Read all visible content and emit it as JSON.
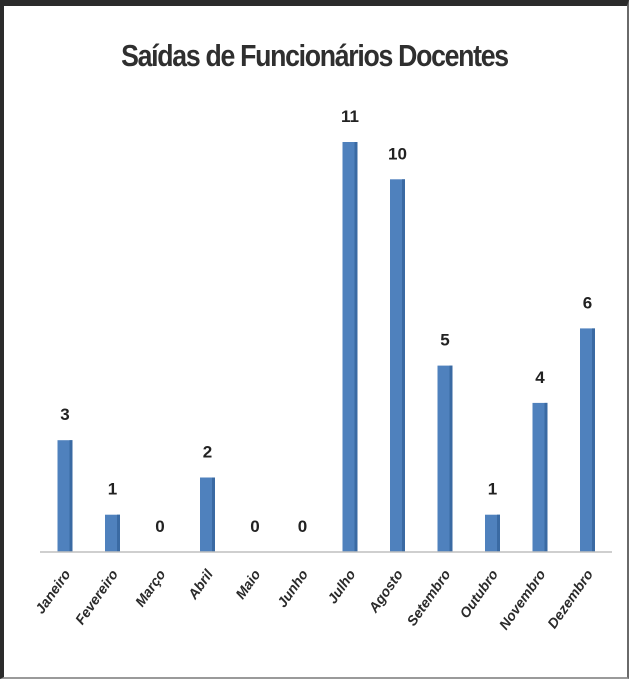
{
  "chart_data": {
    "type": "bar",
    "title": "Saídas de Funcionários Docentes",
    "categories": [
      "Janeiro",
      "Fevereiro",
      "Março",
      "Abril",
      "Maio",
      "Junho",
      "Julho",
      "Agosto",
      "Setembro",
      "Outubro",
      "Novembro",
      "Dezembro"
    ],
    "values": [
      3,
      1,
      0,
      2,
      0,
      0,
      11,
      10,
      5,
      1,
      4,
      6
    ],
    "data_labels": [
      "3",
      "1",
      "0",
      "2",
      "0",
      "0",
      "11",
      "10",
      "5",
      "1",
      "4",
      "6"
    ],
    "ylim": [
      0,
      11
    ],
    "bar_color": "#4f81bd",
    "grid": false,
    "legend": "none"
  }
}
